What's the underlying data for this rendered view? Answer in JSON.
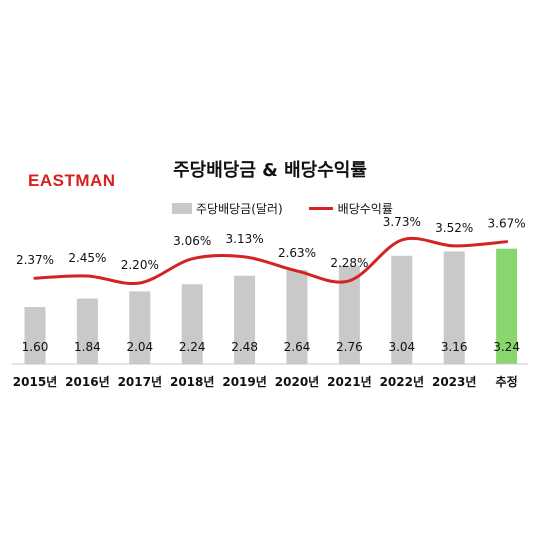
{
  "logo": {
    "text": "EASTMAN",
    "color": "#d9201f"
  },
  "chart_data": {
    "type": "bar+line",
    "title": "주당배당금 & 배당수익률",
    "categories": [
      "2015년",
      "2016년",
      "2017년",
      "2018년",
      "2019년",
      "2020년",
      "2021년",
      "2022년",
      "2023년",
      "추정"
    ],
    "series": [
      {
        "name": "주당배당금(달러)",
        "type": "bar",
        "values": [
          1.6,
          1.84,
          2.04,
          2.24,
          2.48,
          2.64,
          2.76,
          3.04,
          3.16,
          3.24
        ],
        "labels": [
          "1.60",
          "1.84",
          "2.04",
          "2.24",
          "2.48",
          "2.64",
          "2.76",
          "3.04",
          "3.16",
          "3.24"
        ],
        "color": "#c9c9c9",
        "highlight_color": "#8ad66e"
      },
      {
        "name": "배당수익률",
        "type": "line",
        "values": [
          2.37,
          2.45,
          2.2,
          3.06,
          3.13,
          2.63,
          2.28,
          3.73,
          3.52,
          3.67
        ],
        "labels": [
          "2.37%",
          "2.45%",
          "2.20%",
          "3.06%",
          "3.13%",
          "2.63%",
          "2.28%",
          "3.73%",
          "3.52%",
          "3.67%"
        ],
        "color": "#d42323"
      }
    ],
    "legend_position": "top-center",
    "grid": false
  }
}
